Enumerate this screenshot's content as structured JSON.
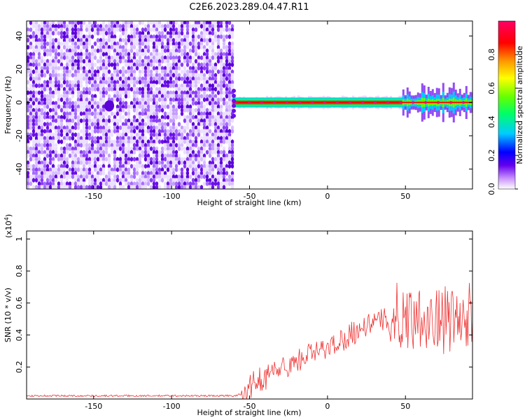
{
  "figure": {
    "title": "C2E6.2023.289.04.47.R11"
  },
  "chart_data": [
    {
      "type": "heatmap",
      "xlabel": "Height of straight line (km)",
      "ylabel": "Frequency (Hz)",
      "xlim": [
        -193,
        93
      ],
      "ylim": [
        -52,
        49
      ],
      "xticks": [
        -150,
        -100,
        -50,
        0,
        50
      ],
      "yticks": [
        -40,
        -20,
        0,
        20,
        40
      ],
      "colorbar": {
        "label": "Normalized spectral amplitude",
        "range": [
          0,
          1
        ],
        "ticks": [
          0.0,
          0.2,
          0.4,
          0.6,
          0.8
        ],
        "colormap": [
          "#ffffff",
          "#cc99ff",
          "#6600ee",
          "#0000ff",
          "#00ccff",
          "#00ff66",
          "#66ff00",
          "#ffff00",
          "#ff9900",
          "#ff0000",
          "#ff0066"
        ]
      },
      "regions": [
        {
          "x_range": [
            -193,
            -61
          ],
          "frequency_range": [
            -52,
            49
          ],
          "description": "broadband noise",
          "amplitude": 0.15
        },
        {
          "x_range": [
            -61,
            48
          ],
          "frequency_center": 0,
          "frequency_halfwidth": 3,
          "description": "narrow carrier",
          "amplitude": 1.0
        },
        {
          "x_range": [
            48,
            93
          ],
          "frequency_center": 0,
          "frequency_halfwidth": 8,
          "description": "scintillating carrier",
          "amplitude": 0.9
        }
      ]
    },
    {
      "type": "line",
      "xlabel": "Height of straight line (km)",
      "ylabel": "SNR (10 * v/v)",
      "y_multiplier": "(x10^4)",
      "xlim": [
        -193,
        93
      ],
      "ylim": [
        0,
        1.05
      ],
      "xticks": [
        -150,
        -100,
        -50,
        0,
        50
      ],
      "yticks": [
        0.2,
        0.4,
        0.6,
        0.8,
        1.0
      ],
      "color": "#ee3333",
      "series": [
        {
          "x": [
            -193,
            -180,
            -170,
            -160,
            -150,
            -140,
            -130,
            -120,
            -110,
            -100,
            -90,
            -80,
            -70,
            -60,
            -55,
            -50,
            -45,
            -40,
            -35,
            -30,
            -25,
            -20,
            -15,
            -10,
            -5,
            0,
            5,
            10,
            15,
            20,
            25,
            30,
            35,
            40,
            45,
            50,
            55,
            60,
            65,
            70,
            75,
            80,
            85,
            93
          ],
          "y": [
            0.02,
            0.02,
            0.02,
            0.02,
            0.02,
            0.02,
            0.02,
            0.02,
            0.02,
            0.02,
            0.02,
            0.02,
            0.02,
            0.02,
            0.03,
            0.08,
            0.11,
            0.14,
            0.16,
            0.19,
            0.21,
            0.24,
            0.26,
            0.28,
            0.3,
            0.32,
            0.35,
            0.38,
            0.41,
            0.44,
            0.46,
            0.48,
            0.49,
            0.5,
            0.5,
            0.5,
            0.52,
            0.55,
            0.5,
            0.48,
            0.52,
            0.5,
            0.48,
            0.5
          ]
        }
      ]
    }
  ]
}
